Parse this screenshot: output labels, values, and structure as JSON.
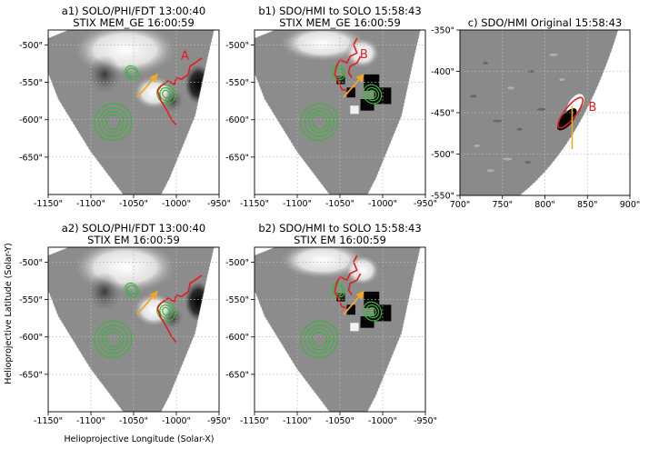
{
  "colors": {
    "flux_rope": "#e11c1c",
    "contour": "#3cb43c",
    "arrow": "#f5a623",
    "disk_gray": "#8c8c8c",
    "label_red": "#e11c1c"
  },
  "axes": {
    "xlabel": "Helioprojective Longitude (Solar-X)",
    "ylabel": "Helioprojective Latitude (Solar-Y)"
  },
  "chart_data": [
    {
      "id": "a1",
      "type": "heatmap",
      "title_line1": "a1) SOLO/PHI/FDT 13:00:40",
      "title_line2": "STIX MEM_GE 16:00:59",
      "x_ticks": [
        "-1150\"",
        "-1100\"",
        "-1050\"",
        "-1000\"",
        "-950\""
      ],
      "y_ticks": [
        "-500\"",
        "-550\"",
        "-600\"",
        "-650\""
      ],
      "xlim": [
        -1150,
        -950
      ],
      "ylim": [
        -700,
        -480
      ],
      "annotation": "A"
    },
    {
      "id": "b1",
      "type": "heatmap",
      "title_line1": "b1) SDO/HMI to SOLO 15:58:43",
      "title_line2": "STIX MEM_GE 16:00:59",
      "x_ticks": [
        "-1150\"",
        "-1100\"",
        "-1050\"",
        "-1000\"",
        "-950\""
      ],
      "y_ticks": [
        "-500\"",
        "-550\"",
        "-600\"",
        "-650\""
      ],
      "xlim": [
        -1150,
        -950
      ],
      "ylim": [
        -700,
        -480
      ],
      "annotation": "B"
    },
    {
      "id": "c",
      "type": "heatmap",
      "title_line1": "c) SDO/HMI Original 15:58:43",
      "title_line2": "",
      "x_ticks": [
        "700\"",
        "750\"",
        "800\"",
        "850\"",
        "900\""
      ],
      "y_ticks": [
        "-350\"",
        "-400\"",
        "-450\"",
        "-500\"",
        "-550\""
      ],
      "xlim": [
        700,
        900
      ],
      "ylim": [
        -550,
        -350
      ],
      "annotation": "B"
    },
    {
      "id": "a2",
      "type": "heatmap",
      "title_line1": "a2) SOLO/PHI/FDT 13:00:40",
      "title_line2": "STIX EM 16:00:59",
      "x_ticks": [
        "-1150\"",
        "-1100\"",
        "-1050\"",
        "-1000\"",
        "-950\""
      ],
      "y_ticks": [
        "-500\"",
        "-550\"",
        "-600\"",
        "-650\""
      ],
      "xlim": [
        -1150,
        -950
      ],
      "ylim": [
        -700,
        -480
      ],
      "annotation": ""
    },
    {
      "id": "b2",
      "type": "heatmap",
      "title_line1": "b2) SDO/HMI to SOLO 15:58:43",
      "title_line2": "STIX EM 16:00:59",
      "x_ticks": [
        "-1150\"",
        "-1100\"",
        "-1050\"",
        "-1000\"",
        "-950\""
      ],
      "y_ticks": [
        "-500\"",
        "-550\"",
        "-600\"",
        "-650\""
      ],
      "xlim": [
        -1150,
        -950
      ],
      "ylim": [
        -700,
        -480
      ],
      "annotation": ""
    }
  ]
}
